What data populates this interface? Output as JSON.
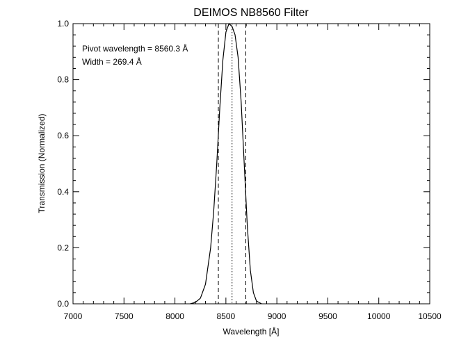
{
  "chart_data": {
    "type": "line",
    "title": "DEIMOS NB8560 Filter",
    "xlabel": "Wavelength [Å]",
    "ylabel": "Transmission (Normalized)",
    "xlim": [
      7000,
      10500
    ],
    "ylim": [
      0.0,
      1.0
    ],
    "xticks": [
      7000,
      7500,
      8000,
      8500,
      9000,
      9500,
      10000,
      10500
    ],
    "xtick_labels": [
      "7000",
      "7500",
      "8000",
      "8500",
      "9000",
      "9500",
      "10000",
      "10500"
    ],
    "yticks": [
      0.0,
      0.2,
      0.4,
      0.6,
      0.8,
      1.0
    ],
    "ytick_labels": [
      "0.0",
      "0.2",
      "0.4",
      "0.6",
      "0.8",
      "1.0"
    ],
    "annotations": [
      "Pivot wavelength = 8560.3 Å",
      "Width = 269.4 Å"
    ],
    "grid": false,
    "series": [
      {
        "style": "solid",
        "x": [
          8150,
          8200,
          8250,
          8300,
          8350,
          8380,
          8410,
          8440,
          8470,
          8500,
          8530,
          8560,
          8590,
          8620,
          8650,
          8680,
          8710,
          8740,
          8770,
          8800,
          8850
        ],
        "y": [
          0.0,
          0.005,
          0.02,
          0.07,
          0.2,
          0.33,
          0.5,
          0.7,
          0.87,
          0.97,
          1.0,
          0.99,
          0.96,
          0.88,
          0.72,
          0.5,
          0.28,
          0.12,
          0.04,
          0.01,
          0.0
        ]
      }
    ],
    "vlines": [
      {
        "x": 8426,
        "style": "dashed"
      },
      {
        "x": 8560.3,
        "style": "dotted"
      },
      {
        "x": 8695,
        "style": "dashed"
      }
    ]
  }
}
